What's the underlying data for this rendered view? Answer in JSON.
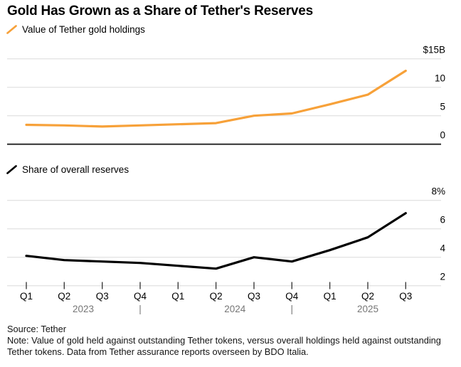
{
  "title": "Gold Has Grown as a Share of Tether's Reserves",
  "colors": {
    "gold": "#F7A139",
    "black_line": "#000000",
    "grid": "#E4E4E4",
    "zero_line": "#2E2E2E",
    "tick": "#3D3D3D",
    "year_text": "#767676"
  },
  "chart_data": [
    {
      "type": "line",
      "title": "Value of Tether gold holdings",
      "categories": [
        "Q1",
        "Q2",
        "Q3",
        "Q4",
        "Q1",
        "Q2",
        "Q3",
        "Q4",
        "Q1",
        "Q2",
        "Q3"
      ],
      "series": [
        {
          "name": "Value of Tether gold holdings",
          "color_key": "gold",
          "values": [
            3.4,
            3.3,
            3.1,
            3.3,
            3.5,
            3.7,
            5.0,
            5.4,
            7.0,
            8.7,
            12.9
          ]
        }
      ],
      "ylabel": "$B",
      "ylim": [
        0,
        15
      ],
      "yticks": [
        {
          "v": 15,
          "label": "$15B"
        },
        {
          "v": 10,
          "label": "10"
        },
        {
          "v": 5,
          "label": "5"
        },
        {
          "v": 0,
          "label": "0"
        }
      ],
      "grid": true,
      "legend_position": "top-left"
    },
    {
      "type": "line",
      "title": "Share of overall reserves",
      "categories": [
        "Q1",
        "Q2",
        "Q3",
        "Q4",
        "Q1",
        "Q2",
        "Q3",
        "Q4",
        "Q1",
        "Q2",
        "Q3"
      ],
      "series": [
        {
          "name": "Share of overall reserves",
          "color_key": "black_line",
          "values": [
            4.1,
            3.8,
            3.7,
            3.6,
            3.4,
            3.2,
            4.0,
            3.7,
            4.5,
            5.4,
            7.1
          ]
        }
      ],
      "ylabel": "%",
      "ylim": [
        2,
        8
      ],
      "yticks": [
        {
          "v": 8,
          "label": "8%"
        },
        {
          "v": 6,
          "label": "6"
        },
        {
          "v": 4,
          "label": "4"
        },
        {
          "v": 2,
          "label": "2"
        }
      ],
      "grid": true,
      "legend_position": "top-left"
    }
  ],
  "xaxis": {
    "quarters": [
      "Q1",
      "Q2",
      "Q3",
      "Q4",
      "Q1",
      "Q2",
      "Q3",
      "Q4",
      "Q1",
      "Q2",
      "Q3"
    ],
    "years": [
      {
        "label": "2023",
        "span": [
          0,
          3
        ]
      },
      {
        "label": "2024",
        "span": [
          4,
          7
        ]
      },
      {
        "label": "2025",
        "span": [
          8,
          10
        ]
      }
    ],
    "separator": "|",
    "separators_at": [
      3,
      7
    ]
  },
  "footer": {
    "source": "Source: Tether",
    "note_lines": [
      "Note: Value of gold held against outstanding Tether tokens, versus overall holdings held against outstanding",
      "Tether tokens. Data from Tether assurance reports overseen by BDO Italia."
    ]
  }
}
